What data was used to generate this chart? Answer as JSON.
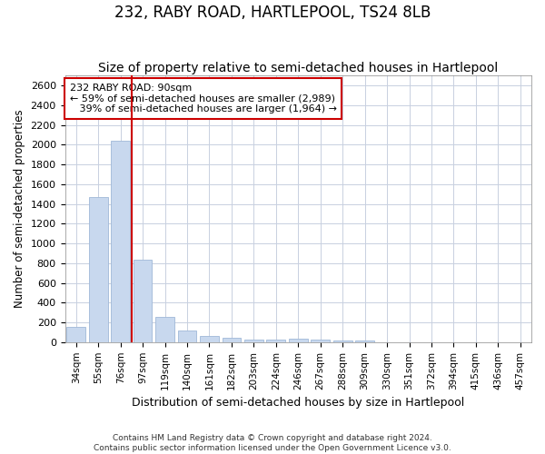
{
  "title": "232, RABY ROAD, HARTLEPOOL, TS24 8LB",
  "subtitle": "Size of property relative to semi-detached houses in Hartlepool",
  "xlabel": "Distribution of semi-detached houses by size in Hartlepool",
  "ylabel": "Number of semi-detached properties",
  "categories": [
    "34sqm",
    "55sqm",
    "76sqm",
    "97sqm",
    "119sqm",
    "140sqm",
    "161sqm",
    "182sqm",
    "203sqm",
    "224sqm",
    "246sqm",
    "267sqm",
    "288sqm",
    "309sqm",
    "330sqm",
    "351sqm",
    "372sqm",
    "394sqm",
    "415sqm",
    "436sqm",
    "457sqm"
  ],
  "values": [
    155,
    1470,
    2040,
    835,
    255,
    115,
    65,
    43,
    30,
    25,
    35,
    28,
    20,
    15,
    0,
    0,
    0,
    0,
    0,
    0,
    0
  ],
  "bar_color": "#c8d8ee",
  "bar_edgecolor": "#a0b8d8",
  "vline_color": "#cc0000",
  "annotation_line1": "232 RABY ROAD: 90sqm",
  "annotation_line2": "← 59% of semi-detached houses are smaller (2,989)",
  "annotation_line3": "   39% of semi-detached houses are larger (1,964) →",
  "annotation_box_color": "#ffffff",
  "annotation_box_edgecolor": "#cc0000",
  "ylim": [
    0,
    2700
  ],
  "yticks": [
    0,
    200,
    400,
    600,
    800,
    1000,
    1200,
    1400,
    1600,
    1800,
    2000,
    2200,
    2400,
    2600
  ],
  "footer_line1": "Contains HM Land Registry data © Crown copyright and database right 2024.",
  "footer_line2": "Contains public sector information licensed under the Open Government Licence v3.0.",
  "background_color": "#ffffff",
  "plot_bg_color": "#ffffff",
  "grid_color": "#c8d0e0",
  "title_fontsize": 12,
  "subtitle_fontsize": 10
}
